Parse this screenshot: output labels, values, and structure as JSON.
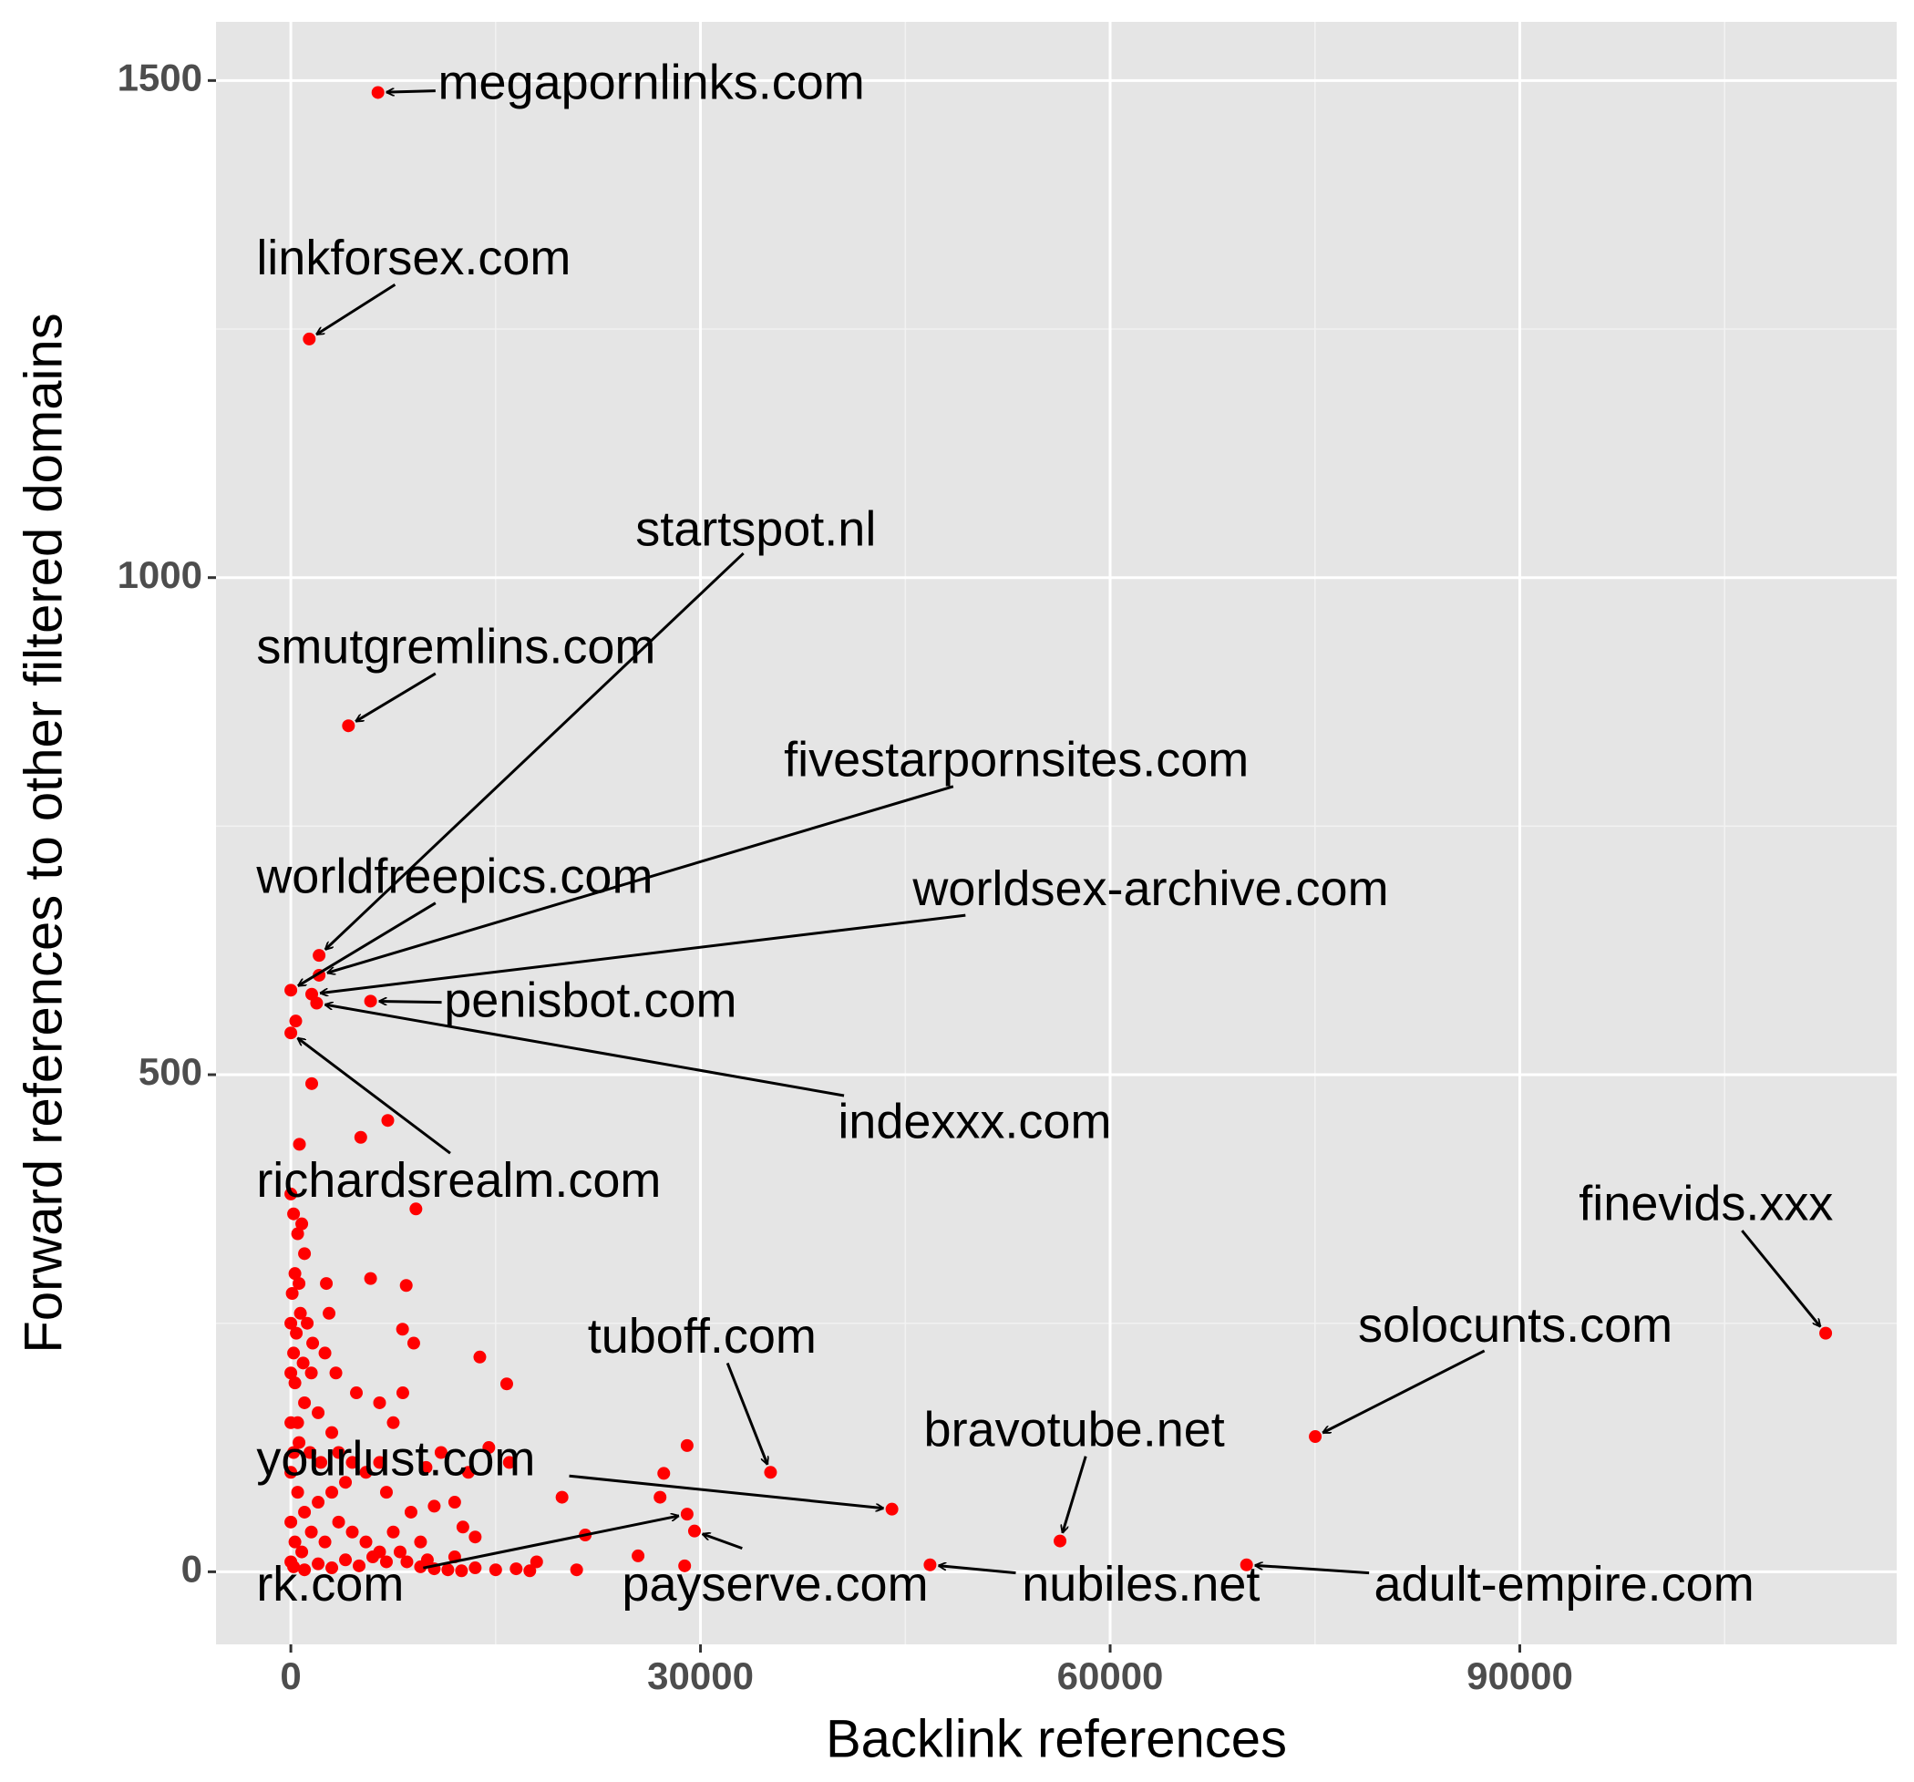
{
  "chart_data": {
    "type": "scatter",
    "x_label": "Backlink references",
    "y_label": "Forward references to other filtered domains",
    "xlim": [
      -5480,
      117600
    ],
    "ylim": [
      -73,
      1559
    ],
    "xticks": [
      0,
      30000,
      60000,
      90000
    ],
    "yticks": [
      0,
      500,
      1000,
      1500
    ],
    "grid": true,
    "color": "#ff0000",
    "x": [
      0,
      200,
      500,
      800,
      300,
      100,
      600,
      1000,
      0,
      400,
      200,
      700,
      1200,
      0,
      300,
      900,
      1500,
      2500,
      3000,
      2000,
      1000,
      500,
      0,
      200,
      600,
      1400,
      2200,
      3500,
      4500,
      5500,
      6500,
      4000,
      3000,
      2000,
      1000,
      500,
      0,
      0,
      300,
      800,
      1500,
      2500,
      3500,
      4500,
      5500,
      6500,
      7500,
      8500,
      9500,
      10500,
      11500,
      12500,
      13500,
      15000,
      16500,
      17500,
      0,
      200,
      1000,
      2000,
      3000,
      4000,
      5000,
      6000,
      7000,
      8000,
      2600,
      5840,
      8450,
      13840,
      15810,
      29020,
      27310,
      27040,
      19860,
      21560,
      25430,
      28840,
      20930,
      13000,
      12000,
      10500,
      13500,
      16000,
      8180,
      9000,
      8200,
      7500,
      6500,
      4800,
      3300,
      1600,
      2800,
      9160,
      5120,
      7100,
      630,
      1530,
      360,
      9900,
      12600,
      8800,
      7000,
      11000,
      14500,
      9500,
      10000,
      12000,
      18000
    ],
    "y": [
      380,
      360,
      340,
      350,
      300,
      280,
      290,
      320,
      250,
      240,
      220,
      260,
      250,
      200,
      190,
      210,
      200,
      220,
      140,
      160,
      170,
      150,
      150,
      120,
      130,
      120,
      110,
      120,
      110,
      100,
      110,
      90,
      80,
      70,
      60,
      80,
      100,
      50,
      30,
      20,
      40,
      30,
      50,
      40,
      30,
      20,
      40,
      10,
      5,
      3,
      2,
      1,
      4,
      2,
      3,
      1,
      10,
      5,
      2,
      8,
      4,
      12,
      6,
      15,
      10,
      20,
      290,
      295,
      288,
      216,
      189,
      127,
      99,
      75,
      75,
      37,
      16,
      6,
      2,
      100,
      70,
      66,
      35,
      110,
      244,
      230,
      180,
      150,
      170,
      180,
      200,
      230,
      260,
      365,
      437,
      454,
      430,
      491,
      554,
      105,
      45,
      60,
      80,
      120,
      125,
      30,
      12,
      15,
      10
    ],
    "annotations": [
      {
        "text": "megapornlinks.com",
        "x": 6380,
        "y": 1488
      },
      {
        "text": "linkforsex.com",
        "x": 1350,
        "y": 1240
      },
      {
        "text": "smutgremlins.com",
        "x": 4220,
        "y": 851
      },
      {
        "text": "startspot.nl",
        "x": 2070,
        "y": 620
      },
      {
        "text": "fivestarpornsites.com",
        "x": 2070,
        "y": 600
      },
      {
        "text": "worldfreepics.com",
        "x": 0,
        "y": 585
      },
      {
        "text": "worldsex-archive.com",
        "x": 1530,
        "y": 581
      },
      {
        "text": "penisbot.com",
        "x": 5840,
        "y": 574
      },
      {
        "text": "indexxx.com",
        "x": 1890,
        "y": 572
      },
      {
        "text": "richardsrealm.com",
        "x": 0,
        "y": 542
      },
      {
        "text": "finevids.xxx",
        "x": 112400,
        "y": 240
      },
      {
        "text": "solocunts.com",
        "x": 75020,
        "y": 136
      },
      {
        "text": "tuboff.com",
        "x": 35130,
        "y": 100
      },
      {
        "text": "bravotube.net",
        "x": 56330,
        "y": 31
      },
      {
        "text": "yourlust.com",
        "x": 44020,
        "y": 63
      },
      {
        "text": "nubiles.net",
        "x": 46810,
        "y": 7
      },
      {
        "text": "adult-empire.com",
        "x": 69990,
        "y": 7
      },
      {
        "text": "payserve.com",
        "x": 29560,
        "y": 41
      },
      {
        "text": "rk.com",
        "x": 29020,
        "y": 58
      }
    ]
  }
}
